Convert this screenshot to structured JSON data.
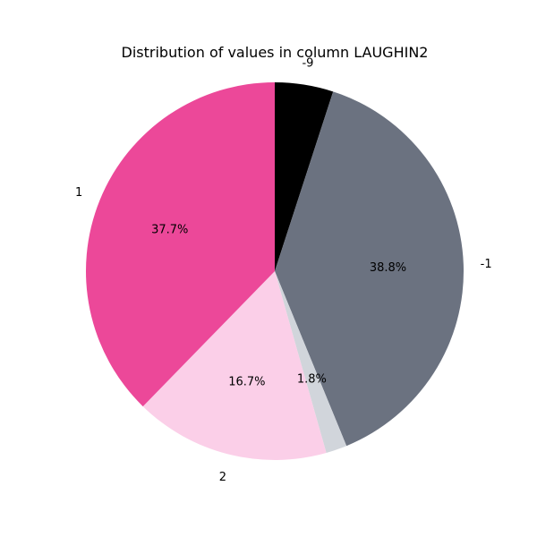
{
  "chart_data": {
    "type": "pie",
    "title": "Distribution of values in column LAUGHIN2",
    "slices": [
      {
        "label": "-9",
        "percent": 5.0,
        "pct_label": "",
        "color": "#000000"
      },
      {
        "label": "-1",
        "percent": 38.8,
        "pct_label": "38.8%",
        "color": "#6b7280"
      },
      {
        "label": "",
        "percent": 1.8,
        "pct_label": "1.8%",
        "color": "#d1d5db"
      },
      {
        "label": "2",
        "percent": 16.7,
        "pct_label": "16.7%",
        "color": "#fbcfe8"
      },
      {
        "label": "1",
        "percent": 37.7,
        "pct_label": "37.7%",
        "color": "#ec4899"
      }
    ]
  }
}
